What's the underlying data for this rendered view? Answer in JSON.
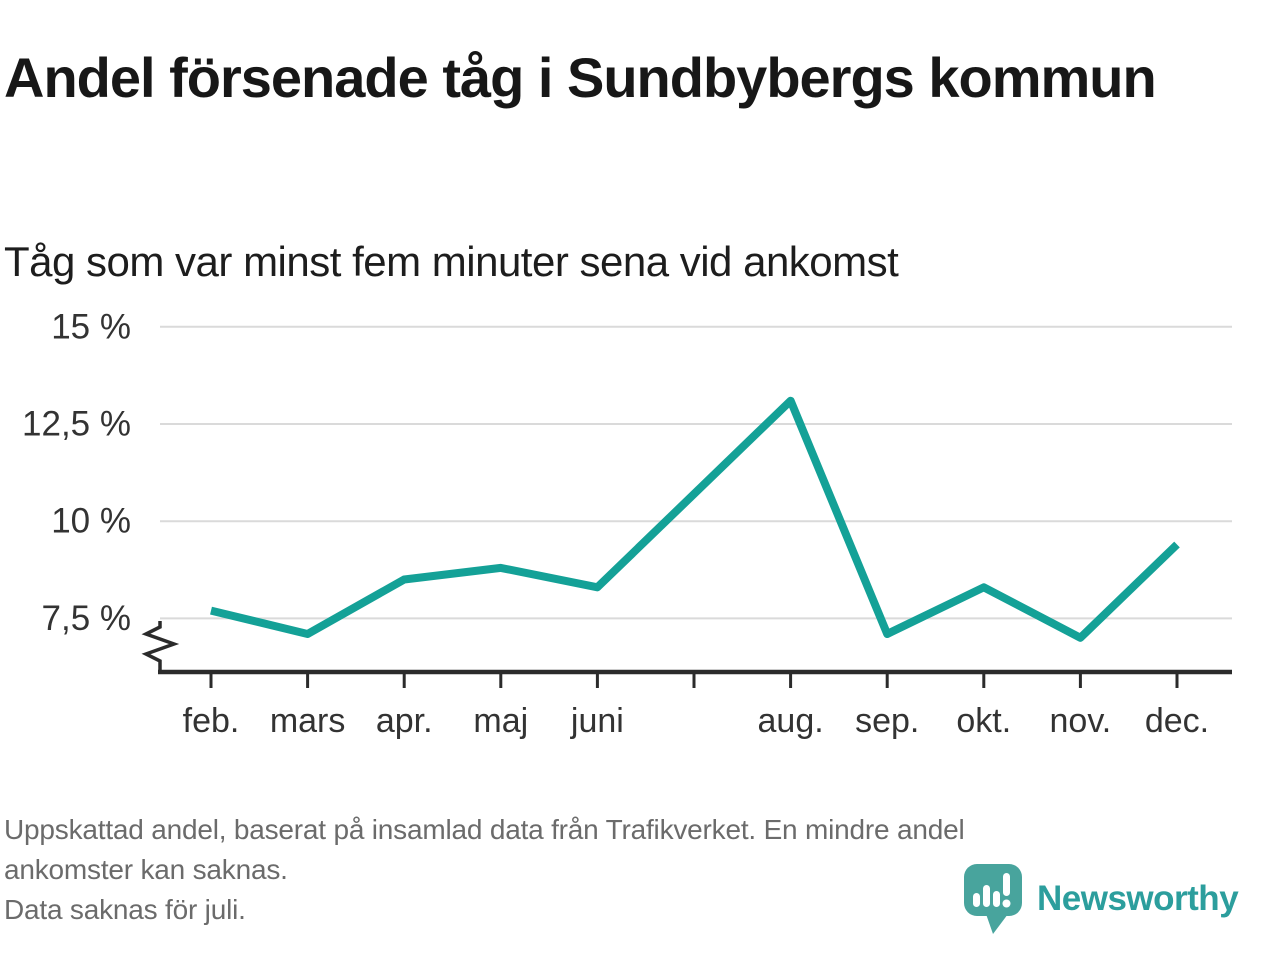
{
  "header": {
    "title": "Andel försenade tåg i Sundbybergs kommun",
    "subtitle": "Tåg som var minst fem minuter sena vid ankomst"
  },
  "chart_data": {
    "type": "line",
    "title": "Andel försenade tåg i Sundbybergs kommun",
    "subtitle": "Tåg som var minst fem minuter sena vid ankomst",
    "unit": "%",
    "categories": [
      "feb.",
      "mars",
      "apr.",
      "maj",
      "juni",
      "juli",
      "aug.",
      "sep.",
      "okt.",
      "nov.",
      "dec."
    ],
    "x_tick_labels": [
      "feb.",
      "mars",
      "apr.",
      "maj",
      "juni",
      "",
      "aug.",
      "sep.",
      "okt.",
      "nov.",
      "dec."
    ],
    "series": [
      {
        "name": "Andel försenade tåg",
        "color": "#14a197",
        "values": [
          7.7,
          7.1,
          8.5,
          8.8,
          8.3,
          null,
          13.1,
          7.1,
          8.3,
          7.0,
          9.4
        ]
      }
    ],
    "y_ticks": [
      7.5,
      10,
      12.5,
      15
    ],
    "y_tick_labels": [
      "7,5 %",
      "10 %",
      "12,5 %",
      "15 %"
    ],
    "ylim": [
      6.2,
      15.3
    ],
    "axis_break": true,
    "grid": "horizontal",
    "legend": "none",
    "missing_data_month": "juli"
  },
  "footer": {
    "lines": [
      "Uppskattad andel, baserat på insamlad data från Trafikverket. En mindre andel",
      "ankomster kan saknas.",
      "Data saknas för juli."
    ],
    "brand": {
      "name": "Newsworthy",
      "icon": "speech-bubble-bar-chart-icon",
      "bubble_color": "#48a49d",
      "text_color": "#2c9e9d"
    }
  },
  "colors": {
    "line": "#14a197",
    "grid": "#dadada",
    "axis": "#2b2b2b",
    "title": "#171717",
    "tick_labels": "#333333",
    "footnote": "#6b6b6b",
    "background": "#ffffff"
  }
}
